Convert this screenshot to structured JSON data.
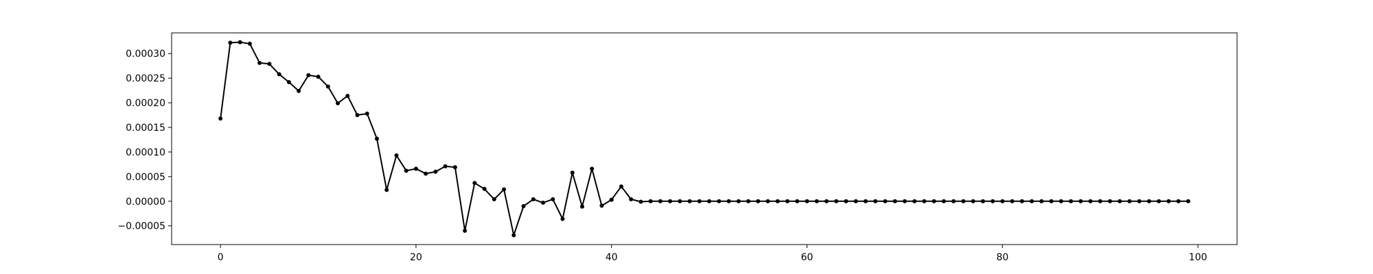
{
  "chart_data": {
    "type": "line",
    "title": "",
    "xlabel": "",
    "ylabel": "",
    "xlim": [
      -5,
      104
    ],
    "ylim": [
      -8.8e-05,
      0.000342
    ],
    "x_ticks": [
      0,
      20,
      40,
      60,
      80,
      100
    ],
    "x_tick_labels": [
      "0",
      "20",
      "40",
      "60",
      "80",
      "100"
    ],
    "y_ticks": [
      -5e-05,
      0.0,
      5e-05,
      0.0001,
      0.00015,
      0.0002,
      0.00025,
      0.0003
    ],
    "y_tick_labels": [
      "−0.00005",
      "0.00000",
      "0.00005",
      "0.00010",
      "0.00015",
      "0.00020",
      "0.00025",
      "0.00030"
    ],
    "grid": false,
    "line_color": "#000000",
    "marker": "circle",
    "series": [
      {
        "x": [
          0,
          1,
          2,
          3,
          4,
          5,
          6,
          7,
          8,
          9,
          10,
          11,
          12,
          13,
          14,
          15,
          16,
          17,
          18,
          19,
          20,
          21,
          22,
          23,
          24,
          25,
          26,
          27,
          28,
          29,
          30,
          31,
          32,
          33,
          34,
          35,
          36,
          37,
          38,
          39,
          40,
          41,
          42,
          43,
          44,
          45,
          46,
          47,
          48,
          49,
          50,
          51,
          52,
          53,
          54,
          55,
          56,
          57,
          58,
          59,
          60,
          61,
          62,
          63,
          64,
          65,
          66,
          67,
          68,
          69,
          70,
          71,
          72,
          73,
          74,
          75,
          76,
          77,
          78,
          79,
          80,
          81,
          82,
          83,
          84,
          85,
          86,
          87,
          88,
          89,
          90,
          91,
          92,
          93,
          94,
          95,
          96,
          97,
          98,
          99
        ],
        "y": [
          0.000168,
          0.000322,
          0.000323,
          0.00032,
          0.000281,
          0.000279,
          0.000258,
          0.000242,
          0.000224,
          0.000256,
          0.000253,
          0.000233,
          0.000199,
          0.000214,
          0.000175,
          0.000178,
          0.000127,
          2.3e-05,
          9.3e-05,
          6.2e-05,
          6.6e-05,
          5.6e-05,
          6e-05,
          7.1e-05,
          6.9e-05,
          -6e-05,
          3.7e-05,
          2.5e-05,
          4e-06,
          2.4e-05,
          -6.9e-05,
          -1e-05,
          4e-06,
          -3e-06,
          4e-06,
          -3.6e-05,
          5.8e-05,
          -1.1e-05,
          6.6e-05,
          -9e-06,
          3e-06,
          3e-05,
          4e-06,
          -1e-06,
          0,
          0,
          0,
          0,
          0,
          0,
          0,
          0,
          0,
          0,
          0,
          0,
          0,
          0,
          0,
          0,
          0,
          0,
          0,
          0,
          0,
          0,
          0,
          0,
          0,
          0,
          0,
          0,
          0,
          0,
          0,
          0,
          0,
          0,
          0,
          0,
          0,
          0,
          0,
          0,
          0,
          0,
          0,
          0,
          0,
          0,
          0,
          0,
          0,
          0,
          0,
          0,
          0,
          0,
          0,
          0
        ]
      }
    ]
  }
}
